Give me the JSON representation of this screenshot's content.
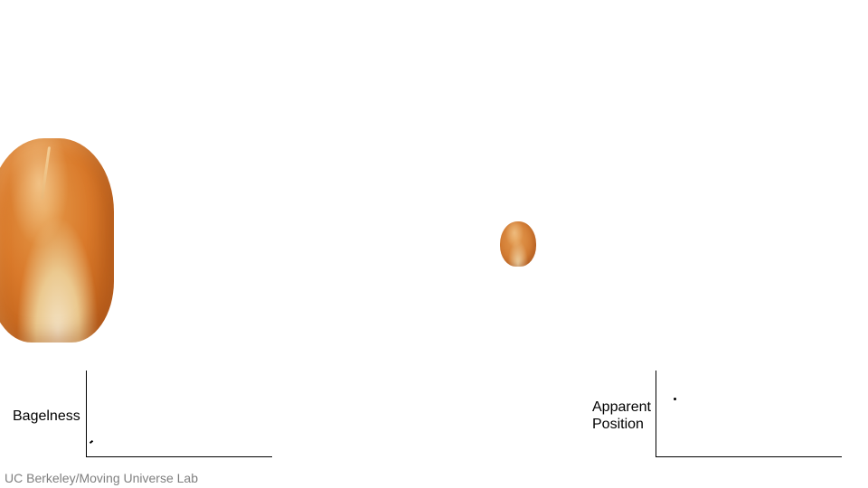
{
  "left_plot": {
    "ylabel": "Bagelness"
  },
  "right_plot": {
    "ylabel_line1": "Apparent",
    "ylabel_line2": "Position"
  },
  "footer": {
    "credit": "UC Berkeley/Moving Universe Lab"
  },
  "icons": {
    "large_bun": "bread-roll-icon",
    "small_bun": "bread-roll-icon"
  },
  "colors": {
    "axis": "#000000",
    "credit_text": "#7f7f7f",
    "background": "#ffffff"
  }
}
